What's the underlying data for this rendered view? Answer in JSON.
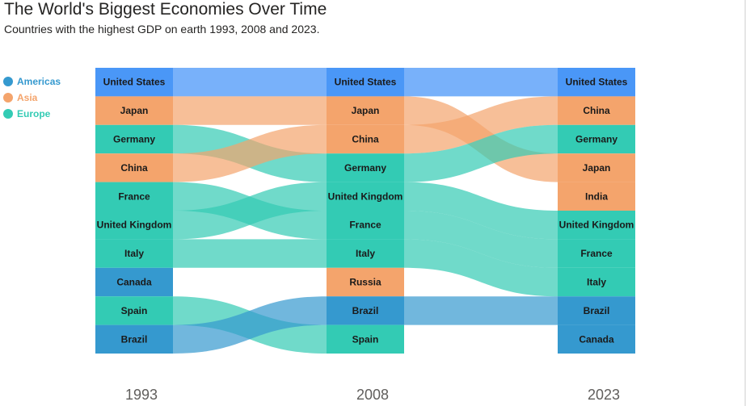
{
  "title": "The World's Biggest Economies Over Time",
  "subtitle": "Countries with the highest GDP on earth 1993, 2008 and 2023.",
  "colors": {
    "Americas": "#3599cf",
    "Asia": "#f4a46c",
    "Europe": "#33cbb4",
    "united_states_node": "#4a97f7",
    "united_states_flow": "#78b1fa"
  },
  "legend": [
    {
      "name": "Americas",
      "color": "#3599cf"
    },
    {
      "name": "Asia",
      "color": "#f4a46c"
    },
    {
      "name": "Europe",
      "color": "#33cbb4"
    }
  ],
  "chart_data": {
    "type": "sankey",
    "title": "The World's Biggest Economies Over Time",
    "subtitle": "Countries with the highest GDP on earth 1993, 2008 and 2023.",
    "columns": [
      "1993",
      "2008",
      "2023"
    ],
    "rankings": [
      [
        "United States",
        "Japan",
        "Germany",
        "China",
        "France",
        "United Kingdom",
        "Italy",
        "Canada",
        "Spain",
        "Brazil"
      ],
      [
        "United States",
        "Japan",
        "China",
        "Germany",
        "United Kingdom",
        "France",
        "Italy",
        "Russia",
        "Brazil",
        "Spain"
      ],
      [
        "United States",
        "China",
        "Germany",
        "Japan",
        "India",
        "United Kingdom",
        "France",
        "Italy",
        "Brazil",
        "Canada"
      ]
    ],
    "regions": {
      "United States": "Americas",
      "Canada": "Americas",
      "Brazil": "Americas",
      "Japan": "Asia",
      "China": "Asia",
      "India": "Asia",
      "Russia": "Asia",
      "Germany": "Europe",
      "France": "Europe",
      "United Kingdom": "Europe",
      "Italy": "Europe",
      "Spain": "Europe"
    },
    "legend_position": "left"
  }
}
